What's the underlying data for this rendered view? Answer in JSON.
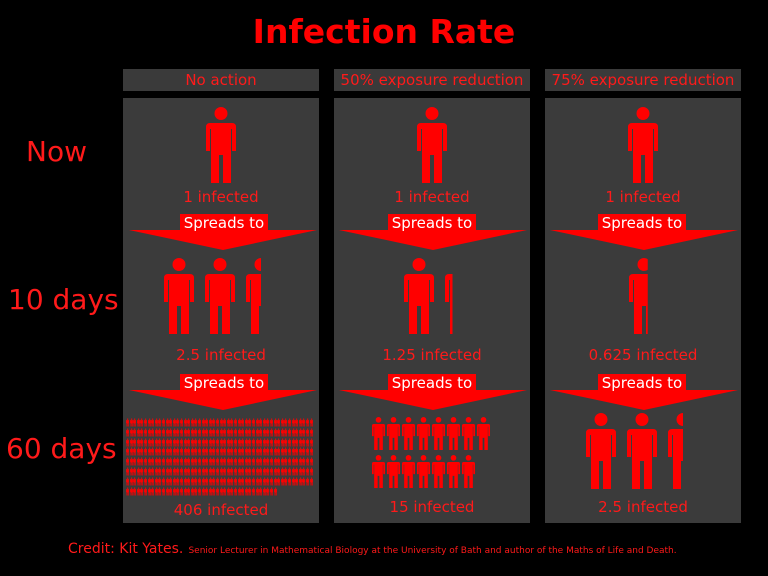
{
  "title": "Infection Rate",
  "colors": {
    "accent": "#ff0000",
    "panel": "#3b3b3b",
    "header": "#3a3a3a",
    "background": "#000000"
  },
  "columns": [
    {
      "header": "No action",
      "now": "1 infected",
      "ten": "2.5 infected",
      "sixty": "406 infected",
      "now_count": 1,
      "ten_count": 2.5,
      "sixty_count": 406
    },
    {
      "header": "50% exposure reduction",
      "now": "1 infected",
      "ten": "1.25 infected",
      "sixty": "15 infected",
      "now_count": 1,
      "ten_count": 1.25,
      "sixty_count": 15
    },
    {
      "header": "75% exposure reduction",
      "now": "1 infected",
      "ten": "0.625 infected",
      "sixty": "2.5 infected",
      "now_count": 1,
      "ten_count": 0.625,
      "sixty_count": 2.5
    }
  ],
  "rows": {
    "now": "Now",
    "ten": "10 days",
    "sixty": "60 days"
  },
  "spreads_label": "Spreads to",
  "credit": {
    "main": "Credit: Kit Yates.",
    "sub": "Senior Lecturer in Mathematical Biology at the University of Bath and author of the Maths of Life and Death."
  },
  "icons": {
    "person": "person-icon",
    "arrow": "down-arrow-icon"
  }
}
